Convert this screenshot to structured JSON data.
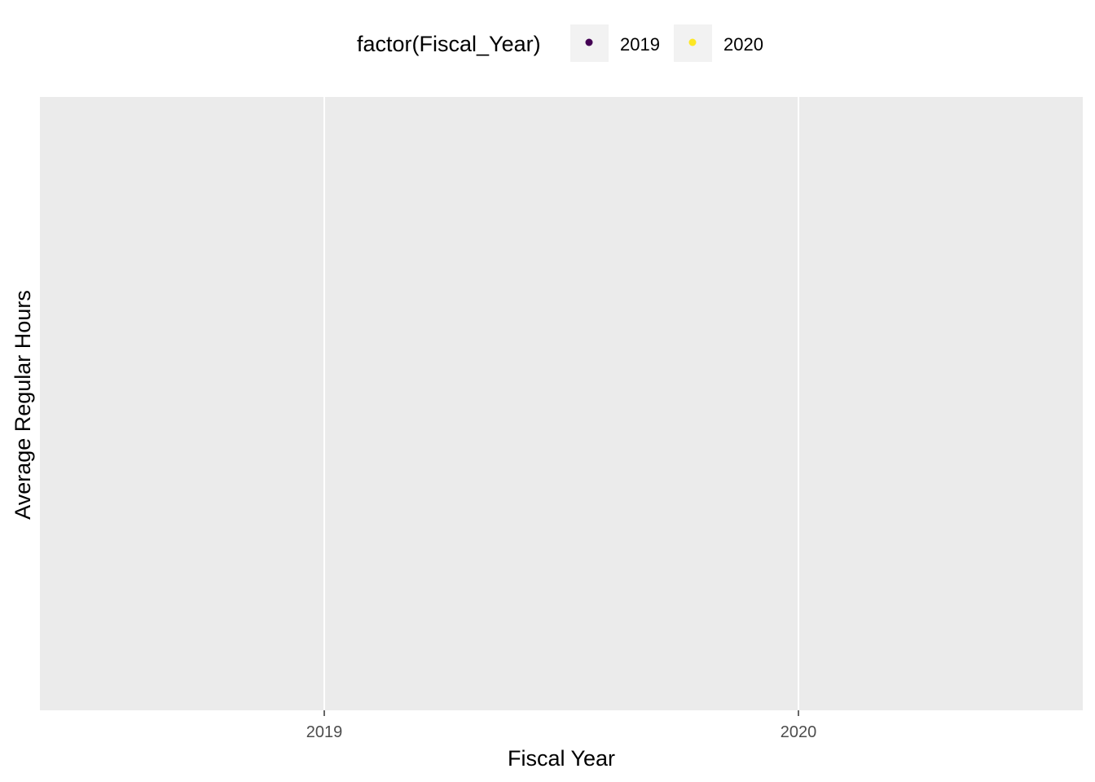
{
  "chart_data": {
    "type": "scatter",
    "xlabel": "Fiscal Year",
    "ylabel": "Average Regular Hours",
    "categories": [
      "2019",
      "2020"
    ],
    "legend": {
      "title": "factor(Fiscal_Year)",
      "position": "top",
      "entries": [
        {
          "label": "2019",
          "color": "#440154"
        },
        {
          "label": "2020",
          "color": "#FDE725"
        }
      ]
    },
    "series": [
      {
        "name": "2019",
        "values": []
      },
      {
        "name": "2020",
        "values": []
      }
    ],
    "grid": true,
    "panel_color": "#EBEBEB"
  }
}
